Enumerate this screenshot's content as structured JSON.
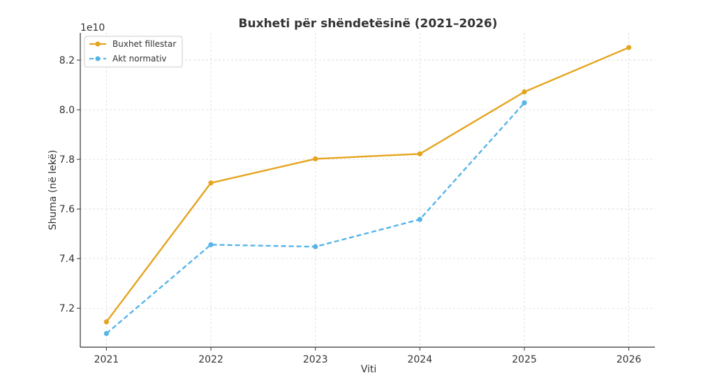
{
  "chart_data": {
    "type": "line",
    "title": "Buxheti për shëndetësinë (2021–2026)",
    "xlabel": "Viti",
    "ylabel": "Shuma (në lekë)",
    "y_offset_label": "1e10",
    "y_tick_values": [
      7.2,
      7.4,
      7.6,
      7.8,
      8.0,
      8.2
    ],
    "y_tick_labels": [
      "7.2",
      "7.4",
      "7.6",
      "7.8",
      "8.0",
      "8.2"
    ],
    "x": [
      2021,
      2022,
      2023,
      2024,
      2025,
      2026
    ],
    "x_tick_labels": [
      "2021",
      "2022",
      "2023",
      "2024",
      "2025",
      "2026"
    ],
    "xlim": [
      2020.75,
      2026.25
    ],
    "ylim": [
      7.043,
      8.31
    ],
    "ylim_unit": "1e10 lekë",
    "grid": true,
    "legend_position": "top-left",
    "series": [
      {
        "name": "Buxhet fillestar",
        "color": "#E5A41E",
        "style": "solid",
        "values": [
          7.145,
          7.705,
          7.802,
          7.822,
          8.072,
          8.251
        ]
      },
      {
        "name": "Akt normativ",
        "color": "#56B4E9",
        "style": "dashed",
        "values": [
          7.098,
          7.456,
          7.448,
          7.558,
          8.028,
          null
        ]
      }
    ]
  }
}
